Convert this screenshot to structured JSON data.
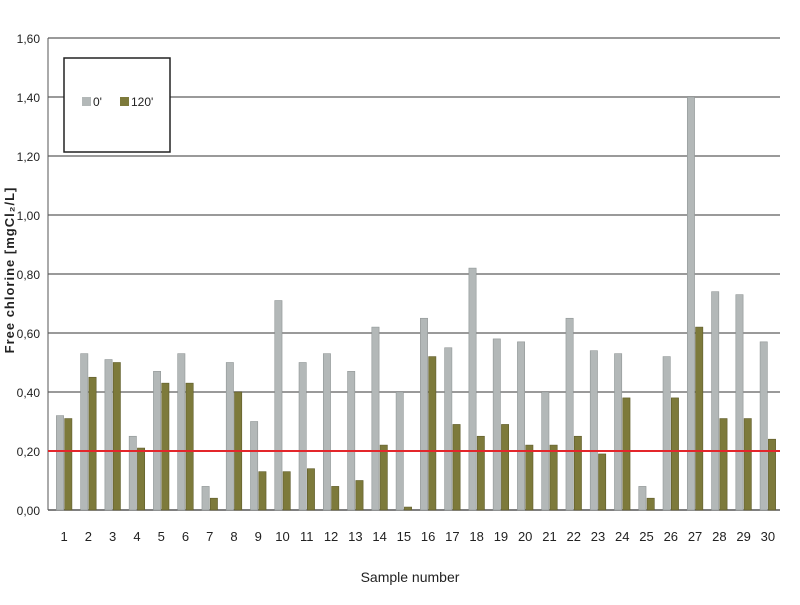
{
  "chart_data": {
    "type": "bar",
    "xlabel": "Sample number",
    "ylabel": "Free chlorine [mgCl₂/L]",
    "ylim": [
      0,
      1.6
    ],
    "yticks": [
      "0,00",
      "0,20",
      "0,40",
      "0,60",
      "0,80",
      "1,00",
      "1,20",
      "1,40",
      "1,60"
    ],
    "grid": true,
    "legend_position": "top-left",
    "reference_line": {
      "value": 0.2,
      "color": "#e3262b"
    },
    "categories": [
      "1",
      "2",
      "3",
      "4",
      "5",
      "6",
      "7",
      "8",
      "9",
      "10",
      "11",
      "12",
      "13",
      "14",
      "15",
      "16",
      "17",
      "18",
      "19",
      "20",
      "21",
      "22",
      "23",
      "24",
      "25",
      "26",
      "27",
      "28",
      "29",
      "30"
    ],
    "series": [
      {
        "name": "0'",
        "color": "#b3b8b8",
        "values": [
          0.32,
          0.53,
          0.51,
          0.25,
          0.47,
          0.53,
          0.08,
          0.5,
          0.3,
          0.71,
          0.5,
          0.53,
          0.47,
          0.62,
          0.4,
          0.65,
          0.55,
          0.82,
          0.58,
          0.57,
          0.4,
          0.65,
          0.54,
          0.53,
          0.08,
          0.52,
          1.4,
          0.74,
          0.73,
          0.57
        ]
      },
      {
        "name": "120'",
        "color": "#7d7a3b",
        "values": [
          0.31,
          0.45,
          0.5,
          0.21,
          0.43,
          0.43,
          0.04,
          0.4,
          0.13,
          0.13,
          0.14,
          0.08,
          0.1,
          0.22,
          0.01,
          0.52,
          0.29,
          0.25,
          0.29,
          0.22,
          0.22,
          0.25,
          0.19,
          0.38,
          0.04,
          0.38,
          0.62,
          0.31,
          0.31,
          0.24
        ]
      }
    ]
  }
}
